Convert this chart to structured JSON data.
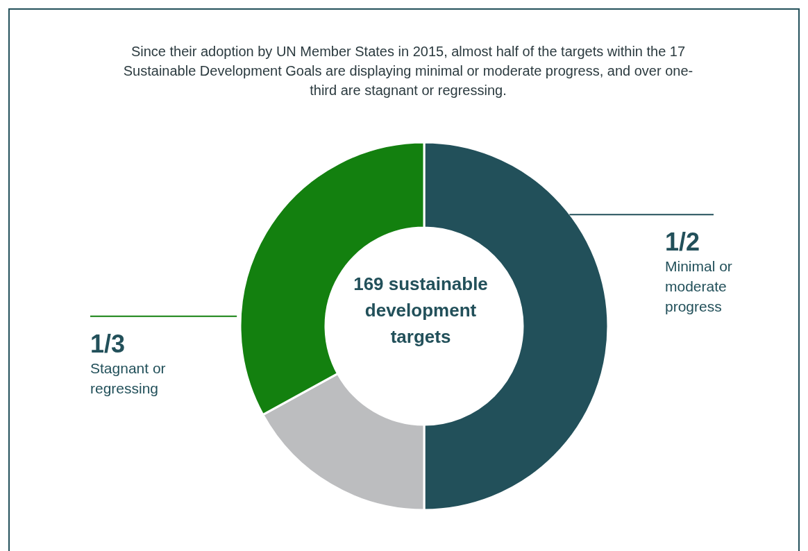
{
  "chart_data": {
    "type": "donut",
    "title": "Since their adoption by UN Member States in 2015, almost half of the targets within the 17 Sustainable Development Goals are displaying minimal or moderate progress, and over one-third are stagnant or regressing.",
    "categories": [
      "Minimal or moderate progress",
      null,
      "Stagnant or regressing"
    ],
    "values": [
      50,
      17,
      33
    ],
    "colors": [
      "#22505a",
      "#bcbdbf",
      "#13800f"
    ],
    "annotations": [
      "169 sustainable development targets",
      {
        "text": "1/2",
        "x": "Minimal or moderate progress"
      },
      {
        "text": "1/3",
        "x": "Stagnant or regressing"
      }
    ]
  }
}
